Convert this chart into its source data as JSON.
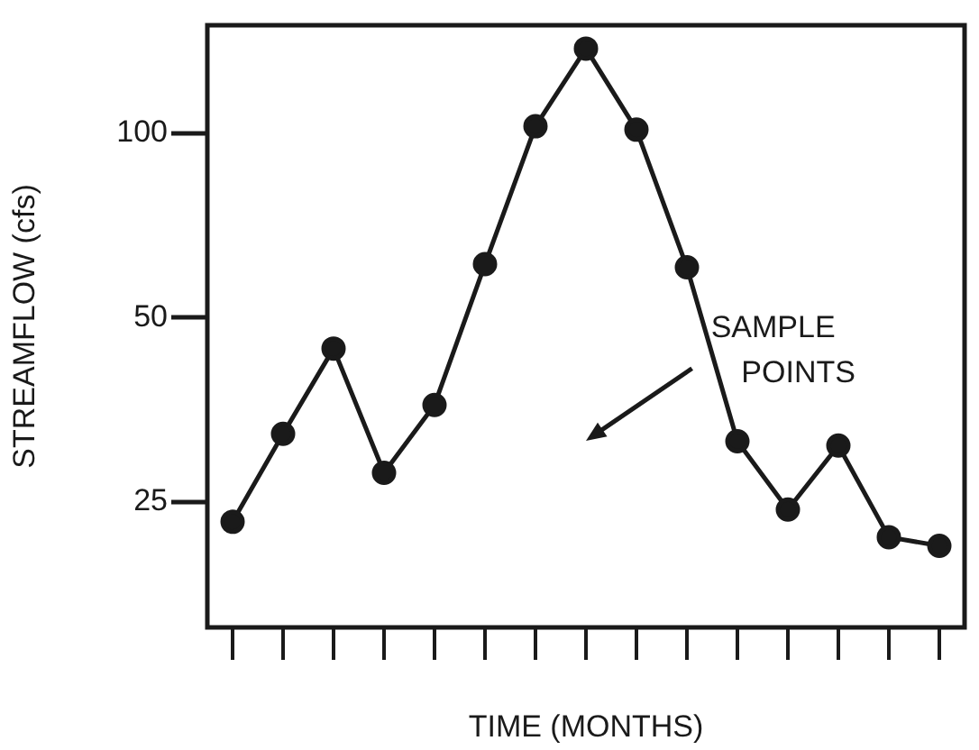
{
  "chart_data": {
    "type": "line",
    "xlabel": "TIME (MONTHS)",
    "ylabel": "STREAMFLOW (cfs)",
    "log": "y",
    "grid": false,
    "tick_labels": "y",
    "marker": "circle",
    "ylim": [
      15.6,
      150
    ],
    "yticks": [
      25,
      50,
      100
    ],
    "categories": [
      null,
      null,
      null,
      null,
      null,
      null,
      null,
      null,
      null,
      null,
      null,
      null,
      null,
      null,
      null
    ],
    "series": [
      {
        "color": "#1a1a1a",
        "values": [
          23.2,
          32.3,
          44.5,
          27.9,
          36,
          61.1,
          102.6,
          137.4,
          101.3,
          60.4,
          31.4,
          24.3,
          30.9,
          21.9,
          21.2
        ]
      }
    ],
    "annotations": [
      "SAMPLE POINTS"
    ]
  }
}
